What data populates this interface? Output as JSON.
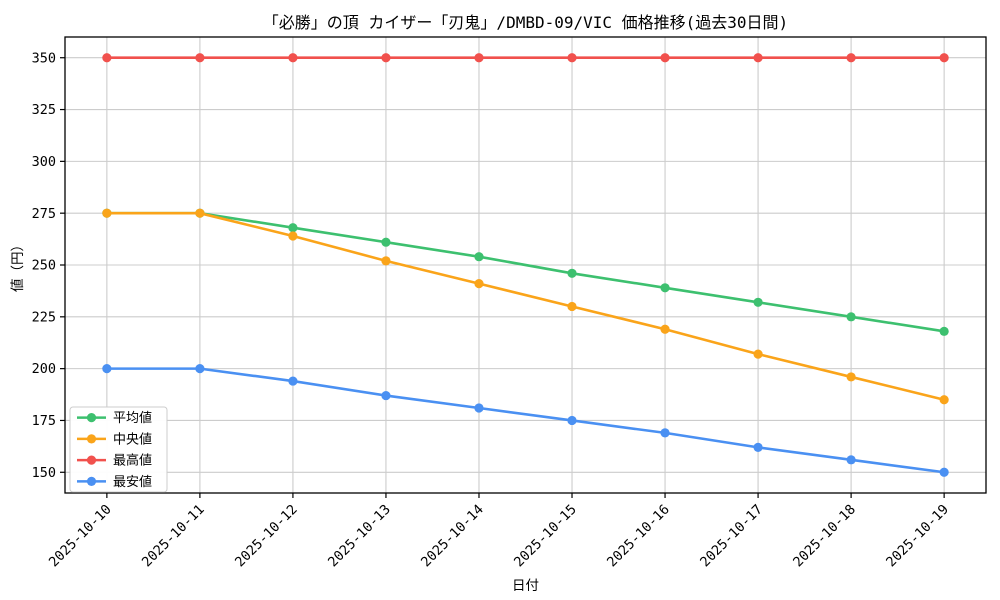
{
  "chart_data": {
    "type": "line",
    "title": "「必勝」の頂 カイザー「刃鬼」/DMBD-09/VIC 価格推移(過去30日間)",
    "xlabel": "日付",
    "ylabel": "値（円）",
    "categories": [
      "2025-10-10",
      "2025-10-11",
      "2025-10-12",
      "2025-10-13",
      "2025-10-14",
      "2025-10-15",
      "2025-10-16",
      "2025-10-17",
      "2025-10-18",
      "2025-10-19"
    ],
    "series": [
      {
        "key": "average",
        "name": "平均値",
        "color": "#3dc06f",
        "values": [
          275,
          275,
          268,
          261,
          254,
          246,
          239,
          232,
          225,
          218
        ]
      },
      {
        "key": "median",
        "name": "中央値",
        "color": "#faa41a",
        "values": [
          275,
          275,
          264,
          252,
          241,
          230,
          219,
          207,
          196,
          185
        ]
      },
      {
        "key": "max",
        "name": "最高値",
        "color": "#f1514d",
        "values": [
          350,
          350,
          350,
          350,
          350,
          350,
          350,
          350,
          350,
          350
        ]
      },
      {
        "key": "min",
        "name": "最安値",
        "color": "#4a90f2",
        "values": [
          200,
          200,
          194,
          187,
          181,
          175,
          169,
          162,
          156,
          150
        ]
      }
    ],
    "yticks": [
      150,
      175,
      200,
      225,
      250,
      275,
      300,
      325,
      350
    ],
    "ylim": [
      140,
      360
    ],
    "grid": true,
    "grid_color": "#cccccc",
    "legend_position": "lower left",
    "background_color": "#ffffff",
    "frame_color": "#000000"
  }
}
